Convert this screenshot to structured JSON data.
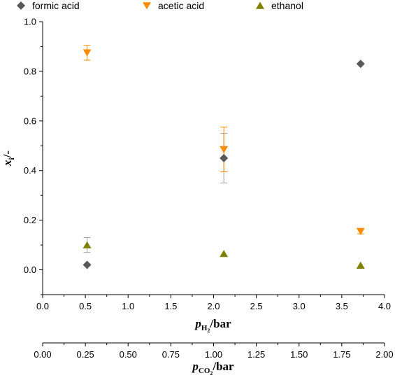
{
  "chart_data": {
    "type": "scatter",
    "colors": {
      "formic acid": "#595959",
      "acetic acid": "#ff8c00",
      "ethanol": "#808000",
      "errorbar_acetic": "#ff8c00",
      "errorbar_other": "#a0a0a0"
    },
    "legend": {
      "placement": "top",
      "entries": [
        "formic acid",
        "acetic acid",
        "ethanol"
      ]
    },
    "x_axis": {
      "label_symbol": "p",
      "label_sub": "H",
      "label_subsub": "2",
      "label_unit": "/bar",
      "range": [
        0.0,
        4.0
      ],
      "ticks": [
        "0.0",
        "0.5",
        "1.0",
        "1.5",
        "2.0",
        "2.5",
        "3.0",
        "3.5",
        "4.0"
      ]
    },
    "x2_axis": {
      "label_symbol": "p",
      "label_sub": "CO",
      "label_subsub": "2",
      "label_unit": "/bar",
      "range": [
        0.0,
        2.0
      ],
      "ticks": [
        "0.00",
        "0.25",
        "0.50",
        "0.75",
        "1.00",
        "1.25",
        "1.50",
        "1.75",
        "2.00"
      ]
    },
    "y_axis": {
      "label_symbol": "x",
      "label_sub": "i",
      "label_unit": "/-",
      "range": [
        -0.1,
        1.0
      ],
      "ticks": [
        "0.0",
        "0.2",
        "0.4",
        "0.6",
        "0.8",
        "1.0"
      ]
    },
    "series": [
      {
        "name": "formic acid",
        "marker": "diamond",
        "points": [
          {
            "x": 0.52,
            "y": 0.02,
            "err": 0.0
          },
          {
            "x": 2.12,
            "y": 0.45,
            "err": 0.1
          },
          {
            "x": 3.72,
            "y": 0.83,
            "err": 0.0
          }
        ]
      },
      {
        "name": "acetic acid",
        "marker": "triangle-down",
        "points": [
          {
            "x": 0.52,
            "y": 0.875,
            "err": 0.03
          },
          {
            "x": 2.12,
            "y": 0.485,
            "err": 0.09
          },
          {
            "x": 3.72,
            "y": 0.155,
            "err": 0.01
          }
        ]
      },
      {
        "name": "ethanol",
        "marker": "triangle-up",
        "points": [
          {
            "x": 0.52,
            "y": 0.1,
            "err": 0.03
          },
          {
            "x": 2.12,
            "y": 0.065,
            "err": 0.0
          },
          {
            "x": 3.72,
            "y": 0.018,
            "err": 0.0
          }
        ]
      }
    ]
  }
}
